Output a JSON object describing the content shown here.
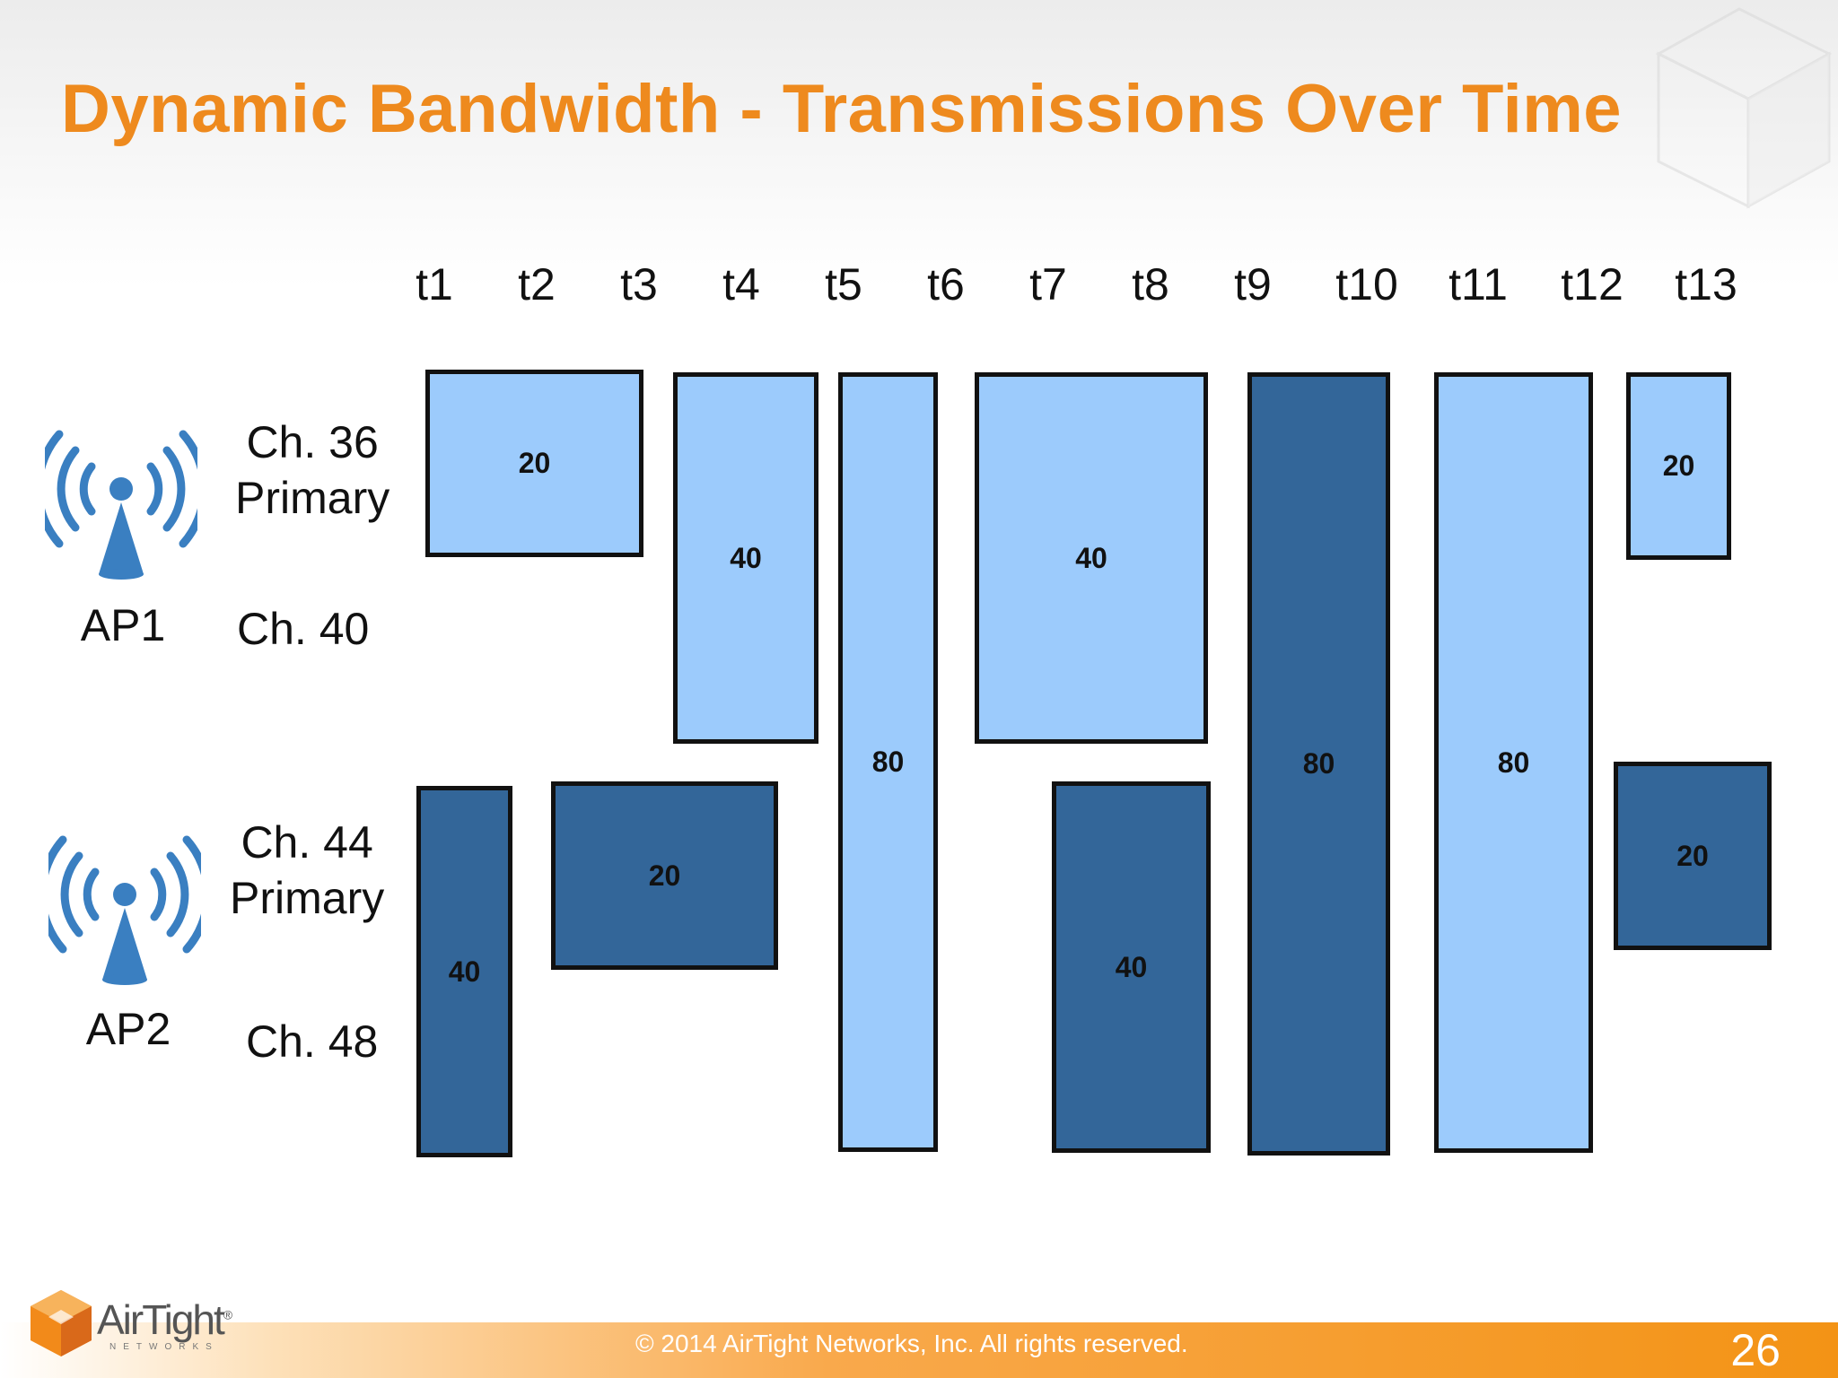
{
  "slide": {
    "title": "Dynamic Bandwidth - Transmissions Over Time",
    "copyright": "© 2014 AirTight Networks, Inc. All rights reserved.",
    "page_number": "26",
    "logo": {
      "text": "AirTight",
      "registered": "®",
      "subtext": "NETWORKS"
    }
  },
  "time_slots": [
    "t1",
    "t2",
    "t3",
    "t4",
    "t5",
    "t6",
    "t7",
    "t8",
    "t9",
    "t10",
    "t11",
    "t12",
    "t13"
  ],
  "channels": {
    "ch36": {
      "line1": "Ch. 36",
      "line2": "Primary"
    },
    "ch40": "Ch. 40",
    "ch44": {
      "line1": "Ch. 44",
      "line2": "Primary"
    },
    "ch48": "Ch. 48"
  },
  "access_points": [
    {
      "label": "AP1",
      "icon": "wireless-antenna-icon",
      "color": "#3a7fc1"
    },
    {
      "label": "AP2",
      "icon": "wireless-antenna-icon",
      "color": "#3a7fc1"
    }
  ],
  "colors": {
    "ap1_block": "#9ccbfc",
    "ap2_block": "#336699",
    "title": "#ee8a1e"
  },
  "transmissions": [
    {
      "ap": "AP1",
      "width_mhz": "20"
    },
    {
      "ap": "AP1",
      "width_mhz": "40"
    },
    {
      "ap": "AP1",
      "width_mhz": "80"
    },
    {
      "ap": "AP1",
      "width_mhz": "40"
    },
    {
      "ap": "AP2",
      "width_mhz": "80"
    },
    {
      "ap": "AP1",
      "width_mhz": "80"
    },
    {
      "ap": "AP1",
      "width_mhz": "20"
    },
    {
      "ap": "AP2",
      "width_mhz": "40"
    },
    {
      "ap": "AP2",
      "width_mhz": "20"
    },
    {
      "ap": "AP2",
      "width_mhz": "40"
    },
    {
      "ap": "AP2",
      "width_mhz": "20"
    }
  ]
}
